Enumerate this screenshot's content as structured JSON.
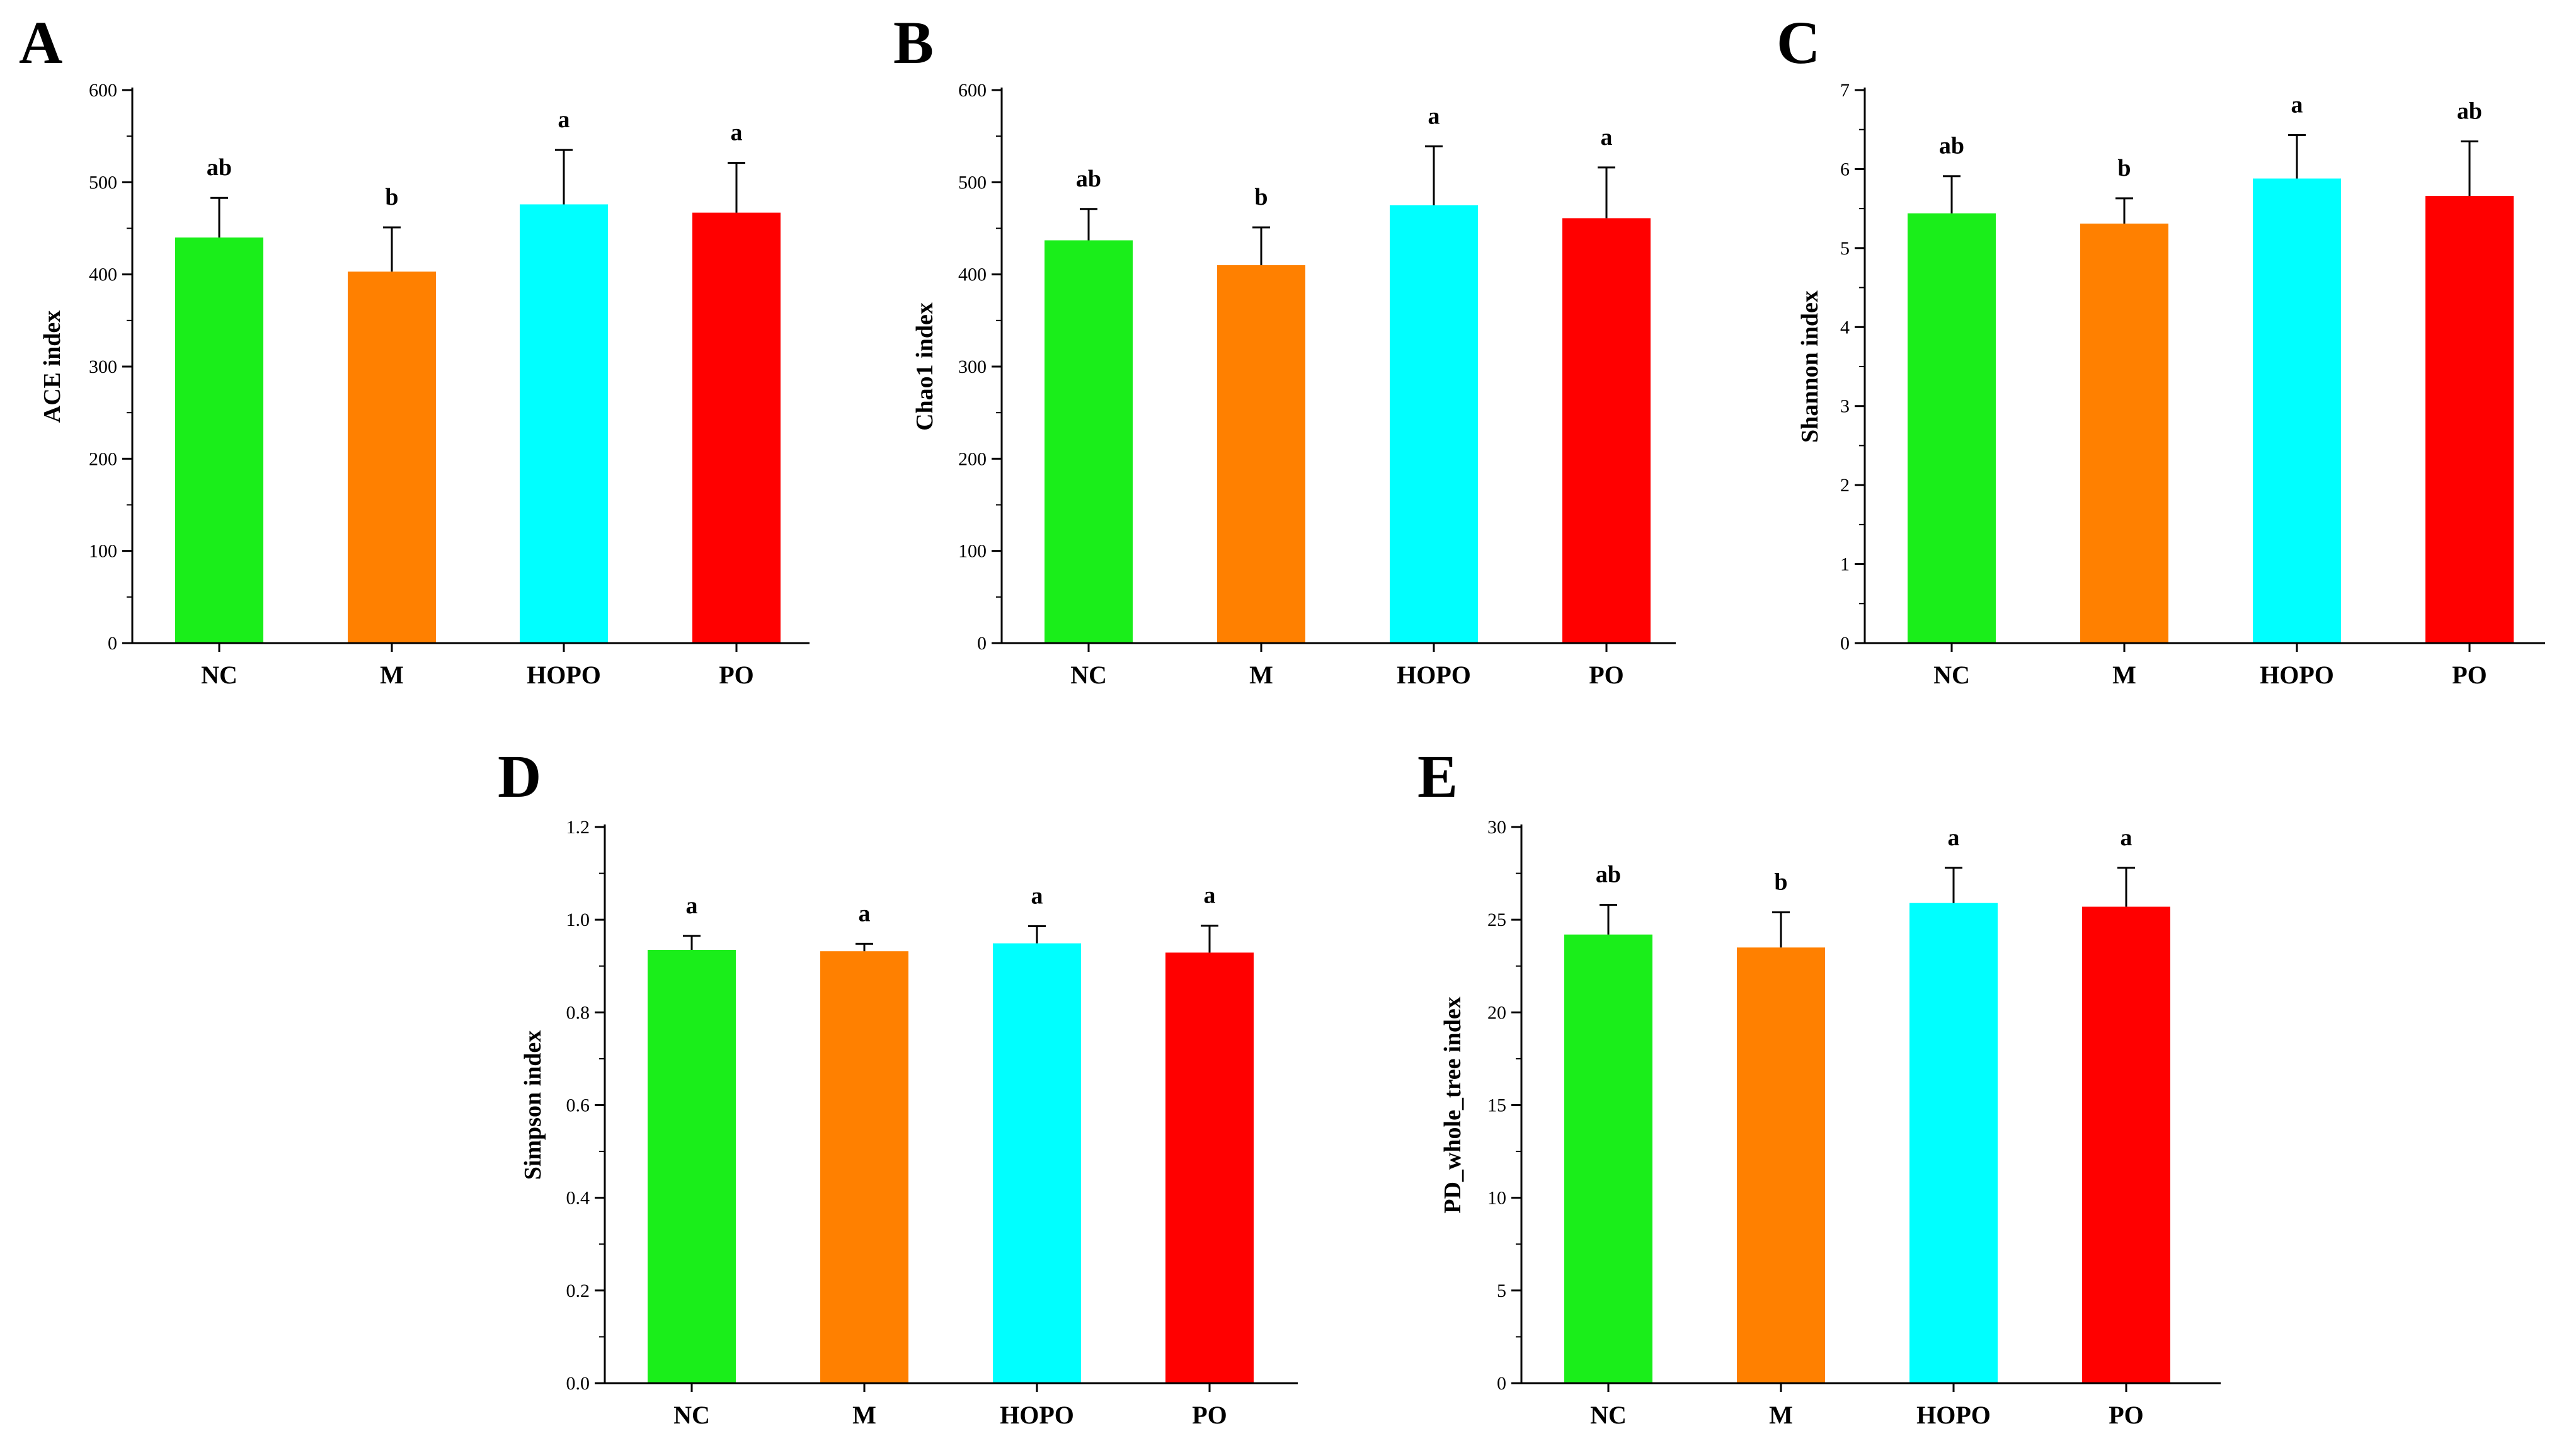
{
  "figure": {
    "colors": {
      "NC": "#1aee1a",
      "M": "#ff8000",
      "HOPO": "#00ffff",
      "PO": "#ff0000"
    }
  },
  "chart_data": [
    {
      "panel": "A",
      "type": "bar",
      "categories": [
        "NC",
        "M",
        "HOPO",
        "PO"
      ],
      "values": [
        440,
        403,
        476,
        467
      ],
      "errors": [
        43,
        48,
        59,
        54
      ],
      "significance": [
        "ab",
        "b",
        "a",
        "a"
      ],
      "ylabel": "ACE index",
      "ylim": [
        0,
        600
      ],
      "yticks": [
        0,
        100,
        200,
        300,
        400,
        500,
        600
      ],
      "ytick_labels": [
        "0",
        "100",
        "200",
        "300",
        "400",
        "500",
        "600"
      ]
    },
    {
      "panel": "B",
      "type": "bar",
      "categories": [
        "NC",
        "M",
        "HOPO",
        "PO"
      ],
      "values": [
        437,
        410,
        475,
        461
      ],
      "errors": [
        34,
        41,
        64,
        55
      ],
      "significance": [
        "ab",
        "b",
        "a",
        "a"
      ],
      "ylabel": "Chao1 index",
      "ylim": [
        0,
        600
      ],
      "yticks": [
        0,
        100,
        200,
        300,
        400,
        500,
        600
      ],
      "ytick_labels": [
        "0",
        "100",
        "200",
        "300",
        "400",
        "500",
        "600"
      ]
    },
    {
      "panel": "C",
      "type": "bar",
      "categories": [
        "NC",
        "M",
        "HOPO",
        "PO"
      ],
      "values": [
        5.44,
        5.31,
        5.88,
        5.66
      ],
      "errors": [
        0.47,
        0.32,
        0.55,
        0.69
      ],
      "significance": [
        "ab",
        "b",
        "a",
        "ab"
      ],
      "ylabel": "Shannon index",
      "ylim": [
        0,
        7
      ],
      "yticks": [
        0,
        1,
        2,
        3,
        4,
        5,
        6,
        7
      ],
      "ytick_labels": [
        "0",
        "1",
        "2",
        "3",
        "4",
        "5",
        "6",
        "7"
      ]
    },
    {
      "panel": "D",
      "type": "bar",
      "categories": [
        "NC",
        "M",
        "HOPO",
        "PO"
      ],
      "values": [
        0.935,
        0.932,
        0.949,
        0.929
      ],
      "errors": [
        0.03,
        0.016,
        0.037,
        0.058
      ],
      "significance": [
        "a",
        "a",
        "a",
        "a"
      ],
      "ylabel": "Simpson index",
      "ylim": [
        0,
        1.2
      ],
      "yticks": [
        0,
        0.2,
        0.4,
        0.6,
        0.8,
        1.0,
        1.2
      ],
      "ytick_labels": [
        "0.0",
        "0.2",
        "0.4",
        "0.6",
        "0.8",
        "1.0",
        "1.2"
      ]
    },
    {
      "panel": "E",
      "type": "bar",
      "categories": [
        "NC",
        "M",
        "HOPO",
        "PO"
      ],
      "values": [
        24.2,
        23.5,
        25.9,
        25.7
      ],
      "errors": [
        1.6,
        1.9,
        1.9,
        2.1
      ],
      "significance": [
        "ab",
        "b",
        "a",
        "a"
      ],
      "ylabel": "PD_whole_tree index",
      "ylim": [
        0,
        30
      ],
      "yticks": [
        0,
        5,
        10,
        15,
        20,
        25,
        30
      ],
      "ytick_labels": [
        "0",
        "5",
        "10",
        "15",
        "20",
        "25",
        "30"
      ]
    }
  ]
}
